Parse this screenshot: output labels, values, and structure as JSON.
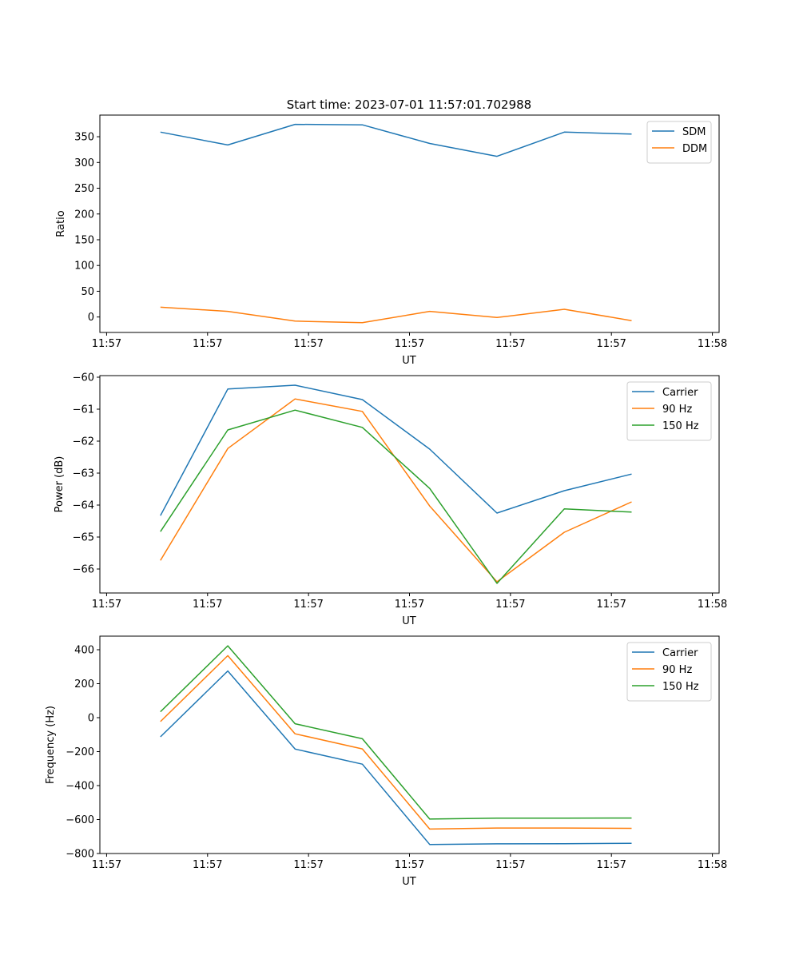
{
  "figure": {
    "title": "Start time: 2023-07-01 11:57:01.702988"
  },
  "chart_data": [
    {
      "type": "line",
      "title": "Start time: 2023-07-01 11:57:01.702988",
      "xlabel": "UT",
      "ylabel": "Ratio",
      "x": [
        1,
        2,
        3,
        4,
        5,
        6,
        7,
        8
      ],
      "xlim": [
        0.1,
        9.3
      ],
      "x_tick_positions": [
        0.2,
        1.7,
        3.2,
        4.7,
        6.2,
        7.7,
        9.2
      ],
      "x_tick_labels": [
        "11:57",
        "11:57",
        "11:57",
        "11:57",
        "11:57",
        "11:57",
        "11:58"
      ],
      "ylim": [
        -30,
        392
      ],
      "y_ticks": [
        0,
        50,
        100,
        150,
        200,
        250,
        300,
        350
      ],
      "y_tick_labels": [
        "0",
        "50",
        "100",
        "150",
        "200",
        "250",
        "300",
        "350"
      ],
      "legend_position": "top-right",
      "series": [
        {
          "name": "SDM",
          "color": "#1f77b4",
          "values": [
            359,
            334,
            374,
            373,
            337,
            312,
            359,
            355
          ]
        },
        {
          "name": "DDM",
          "color": "#ff7f0e",
          "values": [
            19,
            11,
            -8,
            -11,
            11,
            -1,
            15,
            -7
          ]
        }
      ]
    },
    {
      "type": "line",
      "title": "",
      "xlabel": "UT",
      "ylabel": "Power (dB)",
      "x": [
        1,
        2,
        3,
        4,
        5,
        6,
        7,
        8
      ],
      "xlim": [
        0.1,
        9.3
      ],
      "x_tick_positions": [
        0.2,
        1.7,
        3.2,
        4.7,
        6.2,
        7.7,
        9.2
      ],
      "x_tick_labels": [
        "11:57",
        "11:57",
        "11:57",
        "11:57",
        "11:57",
        "11:57",
        "11:58"
      ],
      "ylim": [
        -66.75,
        -59.95
      ],
      "y_ticks": [
        -66,
        -65,
        -64,
        -63,
        -62,
        -61,
        -60
      ],
      "y_tick_labels": [
        "−66",
        "−65",
        "−64",
        "−63",
        "−62",
        "−61",
        "−60"
      ],
      "legend_position": "top-right",
      "series": [
        {
          "name": "Carrier",
          "color": "#1f77b4",
          "values": [
            -64.33,
            -60.37,
            -60.25,
            -60.7,
            -62.25,
            -64.25,
            -63.55,
            -63.03
          ]
        },
        {
          "name": "90 Hz",
          "color": "#ff7f0e",
          "values": [
            -65.73,
            -62.23,
            -60.68,
            -61.07,
            -64.03,
            -66.4,
            -64.85,
            -63.9
          ]
        },
        {
          "name": "150 Hz",
          "color": "#2ca02c",
          "values": [
            -64.83,
            -61.65,
            -61.03,
            -61.57,
            -63.48,
            -66.45,
            -64.12,
            -64.22
          ]
        }
      ]
    },
    {
      "type": "line",
      "title": "",
      "xlabel": "UT",
      "ylabel": "Frequency (Hz)",
      "x": [
        1,
        2,
        3,
        4,
        5,
        6,
        7,
        8
      ],
      "xlim": [
        0.1,
        9.3
      ],
      "x_tick_positions": [
        0.2,
        1.7,
        3.2,
        4.7,
        6.2,
        7.7,
        9.2
      ],
      "x_tick_labels": [
        "11:57",
        "11:57",
        "11:57",
        "11:57",
        "11:57",
        "11:57",
        "11:58"
      ],
      "ylim": [
        -800,
        480
      ],
      "y_ticks": [
        -800,
        -600,
        -400,
        -200,
        0,
        200,
        400
      ],
      "y_tick_labels": [
        "−800",
        "−600",
        "−400",
        "−200",
        "0",
        "200",
        "400"
      ],
      "legend_position": "top-right",
      "series": [
        {
          "name": "Carrier",
          "color": "#1f77b4",
          "values": [
            -113,
            275,
            -185,
            -274,
            -747,
            -743,
            -742,
            -740
          ]
        },
        {
          "name": "90 Hz",
          "color": "#ff7f0e",
          "values": [
            -23,
            365,
            -95,
            -184,
            -656,
            -650,
            -650,
            -652
          ]
        },
        {
          "name": "150 Hz",
          "color": "#2ca02c",
          "values": [
            35,
            423,
            -36,
            -124,
            -597,
            -592,
            -592,
            -591
          ]
        }
      ]
    }
  ]
}
